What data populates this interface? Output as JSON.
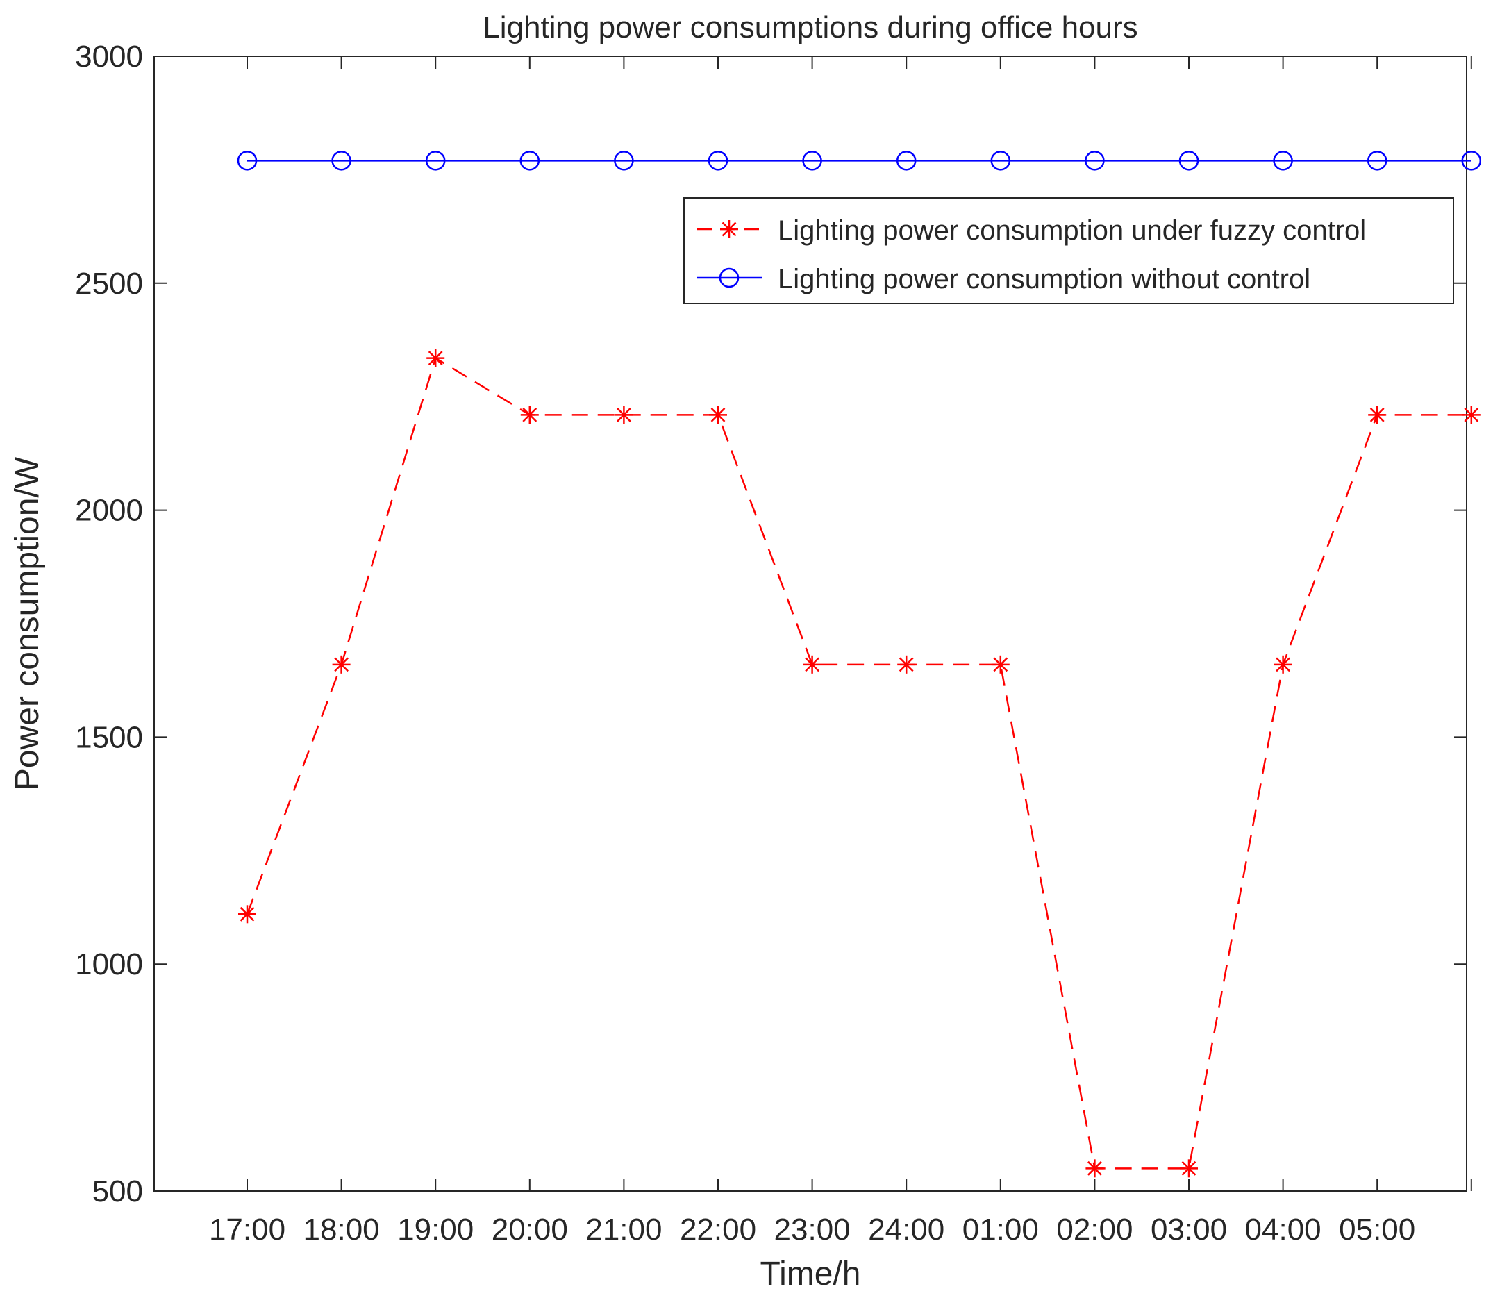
{
  "chart_data": {
    "type": "line",
    "title": "Lighting power consumptions during office hours",
    "xlabel": "Time/h",
    "ylabel": "Power consumption/W",
    "ylim": [
      500,
      3000
    ],
    "yticks": [
      "500",
      "1000",
      "1500",
      "2000",
      "2500",
      "3000"
    ],
    "categories": [
      "17:00",
      "18:00",
      "19:00",
      "20:00",
      "21:00",
      "22:00",
      "23:00",
      "24:00",
      "01:00",
      "02:00",
      "03:00",
      "04:00",
      "05:00",
      ""
    ],
    "grid": false,
    "legend_position": "top-right",
    "series": [
      {
        "name": "Lighting power consumption under fuzzy control",
        "color": "#ff0000",
        "marker": "asterisk",
        "line_style": "dashed",
        "values": [
          1110,
          1660,
          2335,
          2210,
          2210,
          2210,
          1660,
          1660,
          1660,
          550,
          550,
          1660,
          2210,
          2210
        ]
      },
      {
        "name": "Lighting power consumption without control",
        "color": "#0000ff",
        "marker": "circle",
        "line_style": "solid",
        "values": [
          2770,
          2770,
          2770,
          2770,
          2770,
          2770,
          2770,
          2770,
          2770,
          2770,
          2770,
          2770,
          2770,
          2770
        ]
      }
    ]
  }
}
